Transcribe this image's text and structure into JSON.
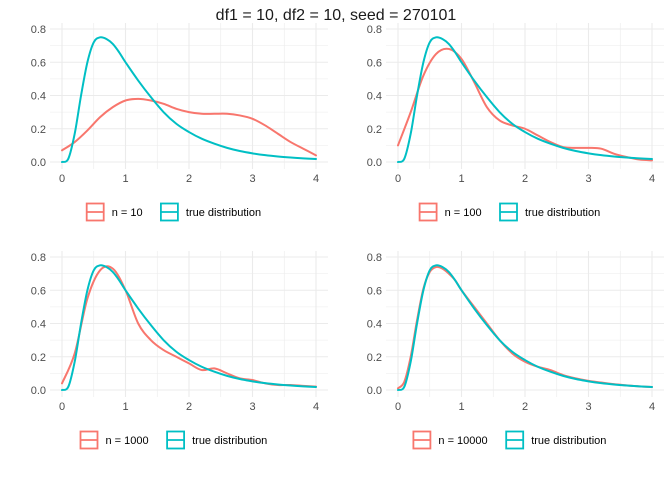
{
  "title": "df1 = 10, df2 = 10, seed = 270101",
  "colors": {
    "sample": "#F8766D",
    "true": "#00BFC4",
    "grid": "#EBEBEB",
    "tick_text": "#4D4D4D",
    "title": "#1A1A1A"
  },
  "chart_data": [
    {
      "type": "line",
      "xlim": [
        0,
        4
      ],
      "ylim": [
        0,
        0.8
      ],
      "x_ticks": [
        "0",
        "1",
        "2",
        "3",
        "4"
      ],
      "y_ticks": [
        "0.0",
        "0.2",
        "0.4",
        "0.6",
        "0.8"
      ],
      "grid": true,
      "legend_position": "bottom",
      "series": [
        {
          "name": "n = 10",
          "color": "#F8766D",
          "x": [
            0,
            0.2,
            0.4,
            0.6,
            0.8,
            1.0,
            1.2,
            1.4,
            1.6,
            1.8,
            2.0,
            2.2,
            2.4,
            2.6,
            2.8,
            3.0,
            3.2,
            3.4,
            3.6,
            3.8,
            4.0
          ],
          "y": [
            0.07,
            0.12,
            0.19,
            0.27,
            0.33,
            0.37,
            0.38,
            0.37,
            0.35,
            0.32,
            0.3,
            0.29,
            0.29,
            0.29,
            0.28,
            0.26,
            0.22,
            0.17,
            0.12,
            0.08,
            0.04
          ]
        },
        {
          "name": "true distribution",
          "color": "#00BFC4",
          "x": [
            0,
            0.1,
            0.2,
            0.3,
            0.4,
            0.5,
            0.6,
            0.7,
            0.8,
            0.9,
            1.0,
            1.2,
            1.4,
            1.6,
            1.8,
            2.0,
            2.2,
            2.4,
            2.6,
            2.8,
            3.0,
            3.2,
            3.4,
            3.6,
            3.8,
            4.0
          ],
          "y": [
            0,
            0.02,
            0.17,
            0.4,
            0.6,
            0.72,
            0.75,
            0.74,
            0.71,
            0.66,
            0.6,
            0.49,
            0.39,
            0.3,
            0.23,
            0.18,
            0.14,
            0.11,
            0.085,
            0.066,
            0.052,
            0.041,
            0.033,
            0.027,
            0.022,
            0.018
          ]
        }
      ]
    },
    {
      "type": "line",
      "xlim": [
        0,
        4
      ],
      "ylim": [
        0,
        0.8
      ],
      "x_ticks": [
        "0",
        "1",
        "2",
        "3",
        "4"
      ],
      "y_ticks": [
        "0.0",
        "0.2",
        "0.4",
        "0.6",
        "0.8"
      ],
      "grid": true,
      "legend_position": "bottom",
      "series": [
        {
          "name": "n = 100",
          "color": "#F8766D",
          "x": [
            0,
            0.2,
            0.4,
            0.6,
            0.8,
            1.0,
            1.2,
            1.4,
            1.6,
            1.8,
            2.0,
            2.2,
            2.4,
            2.6,
            2.8,
            3.0,
            3.2,
            3.4,
            3.6,
            3.8,
            4.0
          ],
          "y": [
            0.1,
            0.3,
            0.52,
            0.65,
            0.68,
            0.62,
            0.48,
            0.33,
            0.25,
            0.22,
            0.2,
            0.16,
            0.12,
            0.09,
            0.085,
            0.085,
            0.08,
            0.05,
            0.03,
            0.015,
            0.01
          ]
        },
        {
          "name": "true distribution",
          "color": "#00BFC4",
          "x": [
            0,
            0.1,
            0.2,
            0.3,
            0.4,
            0.5,
            0.6,
            0.7,
            0.8,
            0.9,
            1.0,
            1.2,
            1.4,
            1.6,
            1.8,
            2.0,
            2.2,
            2.4,
            2.6,
            2.8,
            3.0,
            3.2,
            3.4,
            3.6,
            3.8,
            4.0
          ],
          "y": [
            0,
            0.02,
            0.17,
            0.4,
            0.6,
            0.72,
            0.75,
            0.74,
            0.71,
            0.66,
            0.6,
            0.49,
            0.39,
            0.3,
            0.23,
            0.18,
            0.14,
            0.11,
            0.085,
            0.066,
            0.052,
            0.041,
            0.033,
            0.027,
            0.022,
            0.018
          ]
        }
      ]
    },
    {
      "type": "line",
      "xlim": [
        0,
        4
      ],
      "ylim": [
        0,
        0.8
      ],
      "x_ticks": [
        "0",
        "1",
        "2",
        "3",
        "4"
      ],
      "y_ticks": [
        "0.0",
        "0.2",
        "0.4",
        "0.6",
        "0.8"
      ],
      "grid": true,
      "legend_position": "bottom",
      "series": [
        {
          "name": "n = 1000",
          "color": "#F8766D",
          "x": [
            0,
            0.2,
            0.4,
            0.6,
            0.8,
            1.0,
            1.2,
            1.4,
            1.6,
            1.8,
            2.0,
            2.2,
            2.4,
            2.6,
            2.8,
            3.0,
            3.2,
            3.4,
            3.6,
            3.8,
            4.0
          ],
          "y": [
            0.04,
            0.22,
            0.55,
            0.72,
            0.73,
            0.6,
            0.4,
            0.3,
            0.24,
            0.2,
            0.16,
            0.12,
            0.13,
            0.1,
            0.07,
            0.06,
            0.04,
            0.03,
            0.03,
            0.025,
            0.02
          ]
        },
        {
          "name": "true distribution",
          "color": "#00BFC4",
          "x": [
            0,
            0.1,
            0.2,
            0.3,
            0.4,
            0.5,
            0.6,
            0.7,
            0.8,
            0.9,
            1.0,
            1.2,
            1.4,
            1.6,
            1.8,
            2.0,
            2.2,
            2.4,
            2.6,
            2.8,
            3.0,
            3.2,
            3.4,
            3.6,
            3.8,
            4.0
          ],
          "y": [
            0,
            0.02,
            0.17,
            0.4,
            0.6,
            0.72,
            0.75,
            0.74,
            0.71,
            0.66,
            0.6,
            0.49,
            0.39,
            0.3,
            0.23,
            0.18,
            0.14,
            0.11,
            0.085,
            0.066,
            0.052,
            0.041,
            0.033,
            0.027,
            0.022,
            0.018
          ]
        }
      ]
    },
    {
      "type": "line",
      "xlim": [
        0,
        4
      ],
      "ylim": [
        0,
        0.8
      ],
      "x_ticks": [
        "0",
        "1",
        "2",
        "3",
        "4"
      ],
      "y_ticks": [
        "0.0",
        "0.2",
        "0.4",
        "0.6",
        "0.8"
      ],
      "grid": true,
      "legend_position": "bottom",
      "series": [
        {
          "name": "n = 10000",
          "color": "#F8766D",
          "x": [
            0,
            0.1,
            0.2,
            0.3,
            0.4,
            0.5,
            0.6,
            0.7,
            0.8,
            0.9,
            1.0,
            1.2,
            1.4,
            1.6,
            1.8,
            2.0,
            2.2,
            2.4,
            2.6,
            2.8,
            3.0,
            3.2,
            3.4,
            3.6,
            3.8,
            4.0
          ],
          "y": [
            0.01,
            0.05,
            0.2,
            0.42,
            0.61,
            0.71,
            0.74,
            0.73,
            0.7,
            0.66,
            0.6,
            0.5,
            0.4,
            0.3,
            0.22,
            0.17,
            0.14,
            0.12,
            0.09,
            0.07,
            0.055,
            0.045,
            0.035,
            0.028,
            0.022,
            0.018
          ]
        },
        {
          "name": "true distribution",
          "color": "#00BFC4",
          "x": [
            0,
            0.1,
            0.2,
            0.3,
            0.4,
            0.5,
            0.6,
            0.7,
            0.8,
            0.9,
            1.0,
            1.2,
            1.4,
            1.6,
            1.8,
            2.0,
            2.2,
            2.4,
            2.6,
            2.8,
            3.0,
            3.2,
            3.4,
            3.6,
            3.8,
            4.0
          ],
          "y": [
            0,
            0.02,
            0.17,
            0.4,
            0.6,
            0.72,
            0.75,
            0.74,
            0.71,
            0.66,
            0.6,
            0.49,
            0.39,
            0.3,
            0.23,
            0.18,
            0.14,
            0.11,
            0.085,
            0.066,
            0.052,
            0.041,
            0.033,
            0.027,
            0.022,
            0.018
          ]
        }
      ]
    }
  ]
}
